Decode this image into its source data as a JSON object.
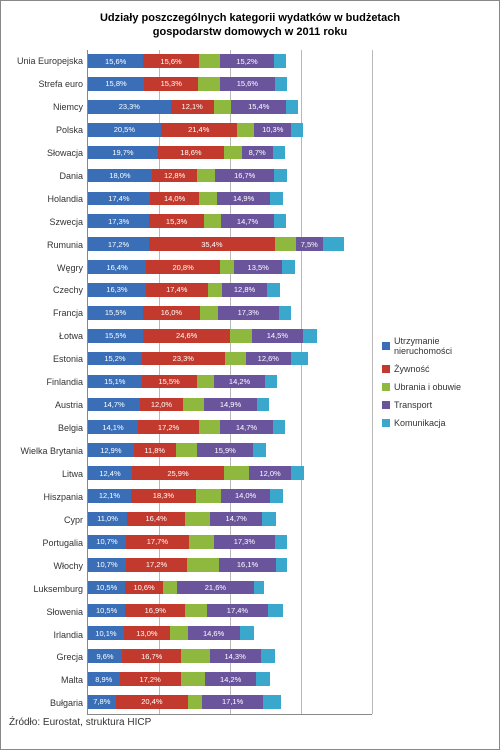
{
  "title_line1": "Udziały poszczególnych kategorii wydatków w budżetach",
  "title_line2": "gospodarstw domowych w 2011 roku",
  "source": "Źródło: Eurostat, struktura HICP",
  "chart": {
    "type": "stacked-bar-horizontal",
    "xmax": 80,
    "grid_positions_pct": [
      25,
      50,
      75,
      100
    ],
    "grid_color": "#b8b8b8",
    "background": "#ffffff",
    "label_fontsize": 9,
    "title_fontsize": 11,
    "value_fontsize": 7.5,
    "bar_height_ratio": 0.6,
    "series": [
      {
        "key": "utrzymanie",
        "label": "Utrzymanie nieruchomości",
        "color": "#3a6fb7"
      },
      {
        "key": "zywnosc",
        "label": "Żywność",
        "color": "#c23a2e"
      },
      {
        "key": "ubrania",
        "label": "Ubrania i obuwie",
        "color": "#8fb93e"
      },
      {
        "key": "transport",
        "label": "Transport",
        "color": "#6a559d"
      },
      {
        "key": "komunikacja",
        "label": "Komunikacja",
        "color": "#3aa7cc"
      }
    ],
    "value_label_color": "#ffffff",
    "rows": [
      {
        "label": "Unia Europejska",
        "v": [
          15.6,
          15.6,
          6,
          15.2,
          3.5
        ],
        "show": [
          0,
          1,
          3
        ]
      },
      {
        "label": "Strefa euro",
        "v": [
          15.8,
          15.3,
          6,
          15.6,
          3.5
        ],
        "show": [
          0,
          1,
          3
        ]
      },
      {
        "label": "Niemcy",
        "v": [
          23.3,
          12.1,
          5,
          15.4,
          3.5
        ],
        "show": [
          0,
          1,
          3
        ]
      },
      {
        "label": "Polska",
        "v": [
          20.5,
          21.4,
          5,
          10.3,
          3.5
        ],
        "show": [
          0,
          1,
          3
        ]
      },
      {
        "label": "Słowacja",
        "v": [
          19.7,
          18.6,
          5,
          8.7,
          3.5
        ],
        "show": [
          0,
          1,
          3
        ]
      },
      {
        "label": "Dania",
        "v": [
          18.0,
          12.8,
          5,
          16.7,
          3.5
        ],
        "show": [
          0,
          1,
          3
        ]
      },
      {
        "label": "Holandia",
        "v": [
          17.4,
          14.0,
          5,
          14.9,
          3.5
        ],
        "show": [
          0,
          1,
          3
        ]
      },
      {
        "label": "Szwecja",
        "v": [
          17.3,
          15.3,
          5,
          14.7,
          3.5
        ],
        "show": [
          0,
          1,
          3
        ]
      },
      {
        "label": "Rumunia",
        "v": [
          17.2,
          35.4,
          6,
          7.5,
          6.0
        ],
        "show": [
          0,
          1,
          3
        ]
      },
      {
        "label": "Węgry",
        "v": [
          16.4,
          20.8,
          4,
          13.5,
          3.5
        ],
        "show": [
          0,
          1,
          3
        ]
      },
      {
        "label": "Czechy",
        "v": [
          16.3,
          17.4,
          4,
          12.8,
          3.5
        ],
        "show": [
          0,
          1,
          3
        ]
      },
      {
        "label": "Francja",
        "v": [
          15.5,
          16.0,
          5,
          17.3,
          3.5
        ],
        "show": [
          0,
          1,
          3
        ]
      },
      {
        "label": "Łotwa",
        "v": [
          15.5,
          24.6,
          6,
          14.5,
          4.0
        ],
        "show": [
          0,
          1,
          3
        ]
      },
      {
        "label": "Estonia",
        "v": [
          15.2,
          23.3,
          6,
          12.6,
          5.0
        ],
        "show": [
          0,
          1,
          3
        ]
      },
      {
        "label": "Finlandia",
        "v": [
          15.1,
          15.5,
          5,
          14.2,
          3.5
        ],
        "show": [
          0,
          1,
          3
        ]
      },
      {
        "label": "Austria",
        "v": [
          14.7,
          12.0,
          6,
          14.9,
          3.5
        ],
        "show": [
          0,
          1,
          3
        ]
      },
      {
        "label": "Belgia",
        "v": [
          14.1,
          17.2,
          6,
          14.7,
          3.5
        ],
        "show": [
          0,
          1,
          3
        ]
      },
      {
        "label": "Wielka Brytania",
        "v": [
          12.9,
          11.8,
          6,
          15.9,
          3.5
        ],
        "show": [
          0,
          1,
          3
        ]
      },
      {
        "label": "Litwa",
        "v": [
          12.4,
          25.9,
          7,
          12.0,
          3.5
        ],
        "show": [
          0,
          1,
          3
        ]
      },
      {
        "label": "Hiszpania",
        "v": [
          12.1,
          18.3,
          7,
          14.0,
          3.5
        ],
        "show": [
          0,
          1,
          3
        ]
      },
      {
        "label": "Cypr",
        "v": [
          11.0,
          16.4,
          7,
          14.7,
          4.0
        ],
        "show": [
          0,
          1,
          3
        ]
      },
      {
        "label": "Portugalia",
        "v": [
          10.7,
          17.7,
          7,
          17.3,
          3.5
        ],
        "show": [
          0,
          1,
          3
        ]
      },
      {
        "label": "Włochy",
        "v": [
          10.7,
          17.2,
          9,
          16.1,
          3.0
        ],
        "show": [
          0,
          1,
          3
        ]
      },
      {
        "label": "Luksemburg",
        "v": [
          10.5,
          10.6,
          4,
          21.6,
          3.0
        ],
        "show": [
          0,
          1,
          3
        ]
      },
      {
        "label": "Słowenia",
        "v": [
          10.5,
          16.9,
          6,
          17.4,
          4.0
        ],
        "show": [
          0,
          1,
          3
        ]
      },
      {
        "label": "Irlandia",
        "v": [
          10.1,
          13.0,
          5,
          14.6,
          4.0
        ],
        "show": [
          0,
          1,
          3
        ]
      },
      {
        "label": "Grecja",
        "v": [
          9.6,
          16.7,
          8,
          14.3,
          4.0
        ],
        "show": [
          0,
          1,
          3
        ]
      },
      {
        "label": "Malta",
        "v": [
          8.9,
          17.2,
          7,
          14.2,
          4.0
        ],
        "show": [
          0,
          1,
          3
        ]
      },
      {
        "label": "Bułgaria",
        "v": [
          7.8,
          20.4,
          4,
          17.1,
          5.0
        ],
        "show": [
          0,
          1,
          3
        ]
      }
    ]
  }
}
